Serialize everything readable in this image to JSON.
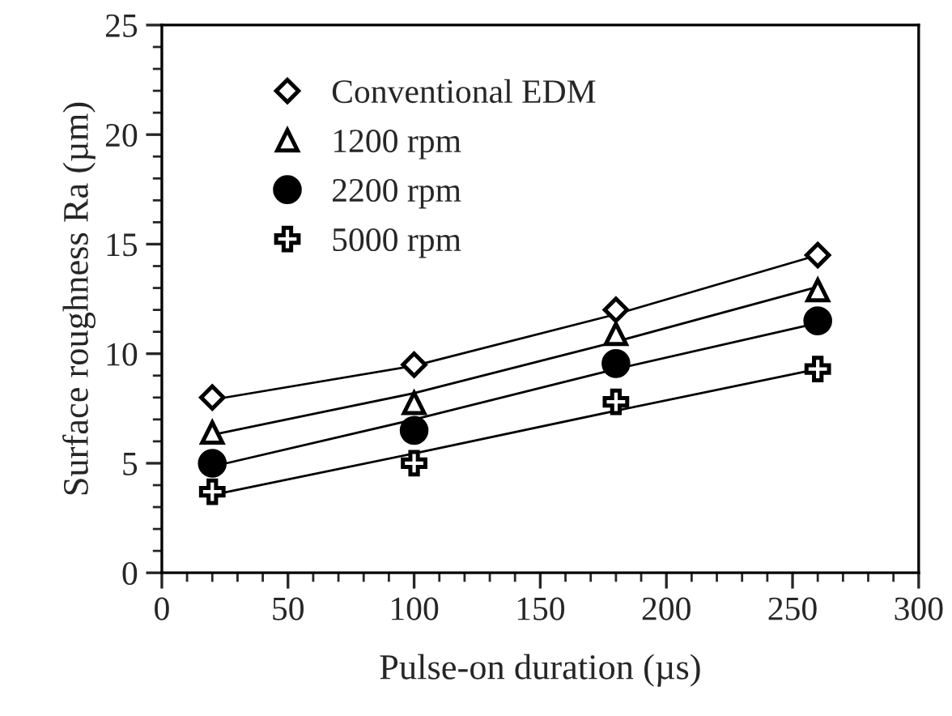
{
  "chart_data": {
    "type": "scatter",
    "xlabel": "Pulse-on duration (µs)",
    "ylabel": "Surface roughness Ra (µm)",
    "xlim": [
      0,
      300
    ],
    "xticks": [
      0,
      50,
      100,
      150,
      200,
      250,
      300
    ],
    "ylim": [
      0,
      25
    ],
    "yticks": [
      0,
      5,
      10,
      15,
      20,
      25
    ],
    "grid": false,
    "legend": "top left",
    "series": [
      {
        "name": "Conventional EDM",
        "color": "#000000",
        "marker": "diamond",
        "x": [
          20,
          100,
          180,
          260
        ],
        "values": [
          8.0,
          9.5,
          12.0,
          14.5
        ]
      },
      {
        "name": "1200 rpm",
        "color": "#000000",
        "marker": "triangle",
        "x": [
          20,
          100,
          180,
          260
        ],
        "values": [
          6.4,
          7.75,
          10.9,
          12.9
        ]
      },
      {
        "name": "2200 rpm",
        "color": "#000000",
        "marker": "circle",
        "x": [
          20,
          100,
          180,
          260
        ],
        "values": [
          5.0,
          6.5,
          9.55,
          11.5
        ]
      },
      {
        "name": "5000 rpm",
        "color": "#000000",
        "marker": "cross",
        "x": [
          20,
          100,
          180,
          260
        ],
        "values": [
          3.7,
          5.0,
          7.8,
          9.3
        ]
      },
      {
        "type": "line",
        "color": "#000000",
        "marker": "none",
        "x": [
          20,
          100,
          180,
          260
        ],
        "values": [
          7.9,
          9.45,
          11.8,
          14.5
        ]
      },
      {
        "type": "line",
        "color": "#000000",
        "marker": "none",
        "x": [
          20,
          100,
          180,
          260
        ],
        "values": [
          6.3,
          8.2,
          10.55,
          13.05
        ]
      },
      {
        "type": "line",
        "color": "#000000",
        "marker": "none",
        "x": [
          20,
          100,
          180,
          260
        ],
        "values": [
          4.85,
          7.0,
          9.3,
          11.4
        ]
      },
      {
        "type": "line",
        "color": "#000000",
        "marker": "none",
        "x": [
          20,
          100,
          180,
          260
        ],
        "values": [
          3.55,
          5.45,
          7.4,
          9.3
        ]
      }
    ]
  }
}
